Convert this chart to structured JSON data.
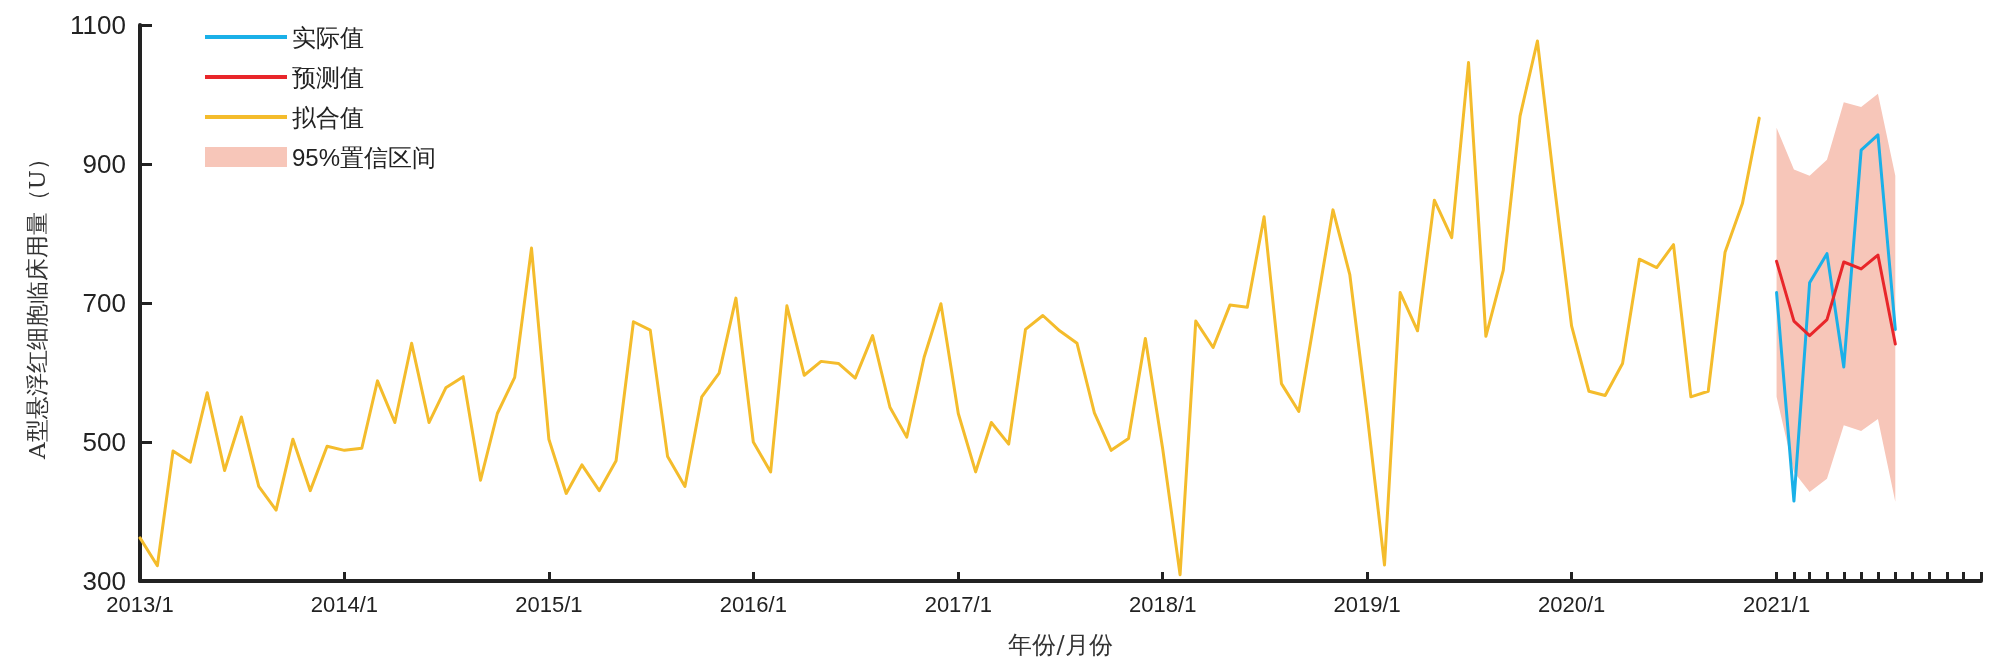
{
  "chart_data": {
    "type": "line",
    "xlabel": "年份/月份",
    "ylabel": "A型悬浮红细胞临床用量（U）",
    "xlim": [
      "2013-01",
      "2022-01"
    ],
    "xticks": [
      {
        "value": "2013-01",
        "label": "2013/1"
      },
      {
        "value": "2014-01",
        "label": "2014/1"
      },
      {
        "value": "2015-01",
        "label": "2015/1"
      },
      {
        "value": "2016-01",
        "label": "2016/1"
      },
      {
        "value": "2017-01",
        "label": "2017/1"
      },
      {
        "value": "2018-01",
        "label": "2018/1"
      },
      {
        "value": "2019-01",
        "label": "2019/1"
      },
      {
        "value": "2020-01",
        "label": "2020/1"
      },
      {
        "value": "2021-01",
        "label": "2021/1"
      },
      {
        "value": "2021-02",
        "label": null
      },
      {
        "value": "2021-03",
        "label": null
      },
      {
        "value": "2021-04",
        "label": null
      },
      {
        "value": "2021-05",
        "label": null
      },
      {
        "value": "2021-06",
        "label": null
      },
      {
        "value": "2021-07",
        "label": null
      },
      {
        "value": "2021-08",
        "label": null
      },
      {
        "value": "2021-09",
        "label": null
      },
      {
        "value": "2021-10",
        "label": null
      },
      {
        "value": "2021-11",
        "label": null
      },
      {
        "value": "2021-12",
        "label": null
      },
      {
        "value": "2022-01",
        "label": null
      }
    ],
    "ylim": [
      300,
      1100
    ],
    "yticks": [
      300,
      500,
      700,
      900,
      1100
    ],
    "grid": false,
    "legend": "top left",
    "marker": "none",
    "line_style": "solid",
    "series": [
      {
        "name": "实际值",
        "color": "#1ab0e8",
        "x": [
          "2021-01",
          "2021-02",
          "2021-03",
          "2021-04",
          "2021-05",
          "2021-06",
          "2021-07",
          "2021-08"
        ],
        "values": [
          715,
          415,
          729,
          771,
          608,
          920,
          942,
          662
        ]
      },
      {
        "name": "预测值",
        "color": "#e8262a",
        "x": [
          "2021-01",
          "2021-02",
          "2021-03",
          "2021-04",
          "2021-05",
          "2021-06",
          "2021-07",
          "2021-08"
        ],
        "values": [
          760,
          674,
          653,
          676,
          759,
          749,
          769,
          641
        ]
      },
      {
        "name": "拟合值",
        "color": "#f4bc2c",
        "x": [
          "2013-01",
          "2013-02",
          "2013-03",
          "2013-04",
          "2013-05",
          "2013-06",
          "2013-07",
          "2013-08",
          "2013-09",
          "2013-10",
          "2013-11",
          "2013-12",
          "2014-01",
          "2014-02",
          "2014-03",
          "2014-04",
          "2014-05",
          "2014-06",
          "2014-07",
          "2014-08",
          "2014-09",
          "2014-10",
          "2014-11",
          "2014-12",
          "2015-01",
          "2015-02",
          "2015-03",
          "2015-04",
          "2015-05",
          "2015-06",
          "2015-07",
          "2015-08",
          "2015-09",
          "2015-10",
          "2015-11",
          "2015-12",
          "2016-01",
          "2016-02",
          "2016-03",
          "2016-04",
          "2016-05",
          "2016-06",
          "2016-07",
          "2016-08",
          "2016-09",
          "2016-10",
          "2016-11",
          "2016-12",
          "2017-01",
          "2017-02",
          "2017-03",
          "2017-04",
          "2017-05",
          "2017-06",
          "2017-07",
          "2017-08",
          "2017-09",
          "2017-10",
          "2017-11",
          "2017-12",
          "2018-01",
          "2018-02",
          "2018-03",
          "2018-04",
          "2018-05",
          "2018-06",
          "2018-07",
          "2018-08",
          "2018-09",
          "2018-10",
          "2018-11",
          "2018-12",
          "2019-01",
          "2019-02",
          "2019-03",
          "2019-04",
          "2019-05",
          "2019-06",
          "2019-07",
          "2019-08",
          "2019-09",
          "2019-10",
          "2019-11",
          "2019-12",
          "2020-01",
          "2020-02",
          "2020-03",
          "2020-04",
          "2020-05",
          "2020-06",
          "2020-07",
          "2020-08",
          "2020-09",
          "2020-10",
          "2020-11",
          "2020-12"
        ],
        "values": [
          362,
          322,
          487,
          471,
          571,
          459,
          536,
          436,
          402,
          504,
          430,
          494,
          488,
          491,
          588,
          528,
          642,
          528,
          578,
          594,
          445,
          541,
          593,
          779,
          504,
          426,
          467,
          430,
          473,
          673,
          661,
          479,
          436,
          565,
          599,
          707,
          500,
          457,
          696,
          596,
          616,
          613,
          592,
          653,
          550,
          507,
          622,
          699,
          541,
          457,
          528,
          497,
          662,
          682,
          660,
          642,
          542,
          488,
          505,
          649,
          490,
          309,
          674,
          636,
          697,
          694,
          824,
          584,
          544,
          686,
          834,
          741,
          540,
          323,
          715,
          660,
          848,
          794,
          1046,
          652,
          747,
          969,
          1077,
          871,
          667,
          573,
          567,
          613,
          763,
          751,
          784,
          565,
          573,
          773,
          843,
          966
        ]
      },
      {
        "name": "95%置信区间",
        "type": "area",
        "color": "#f7c6b9",
        "x": [
          "2021-01",
          "2021-02",
          "2021-03",
          "2021-04",
          "2021-05",
          "2021-06",
          "2021-07",
          "2021-08"
        ],
        "values": [
          null,
          null,
          null,
          null,
          null,
          null,
          null,
          null
        ],
        "lower": [
          565,
          457,
          428,
          447,
          524,
          516,
          533,
          414
        ],
        "upper": [
          952,
          892,
          883,
          906,
          989,
          982,
          1001,
          883
        ]
      }
    ]
  }
}
